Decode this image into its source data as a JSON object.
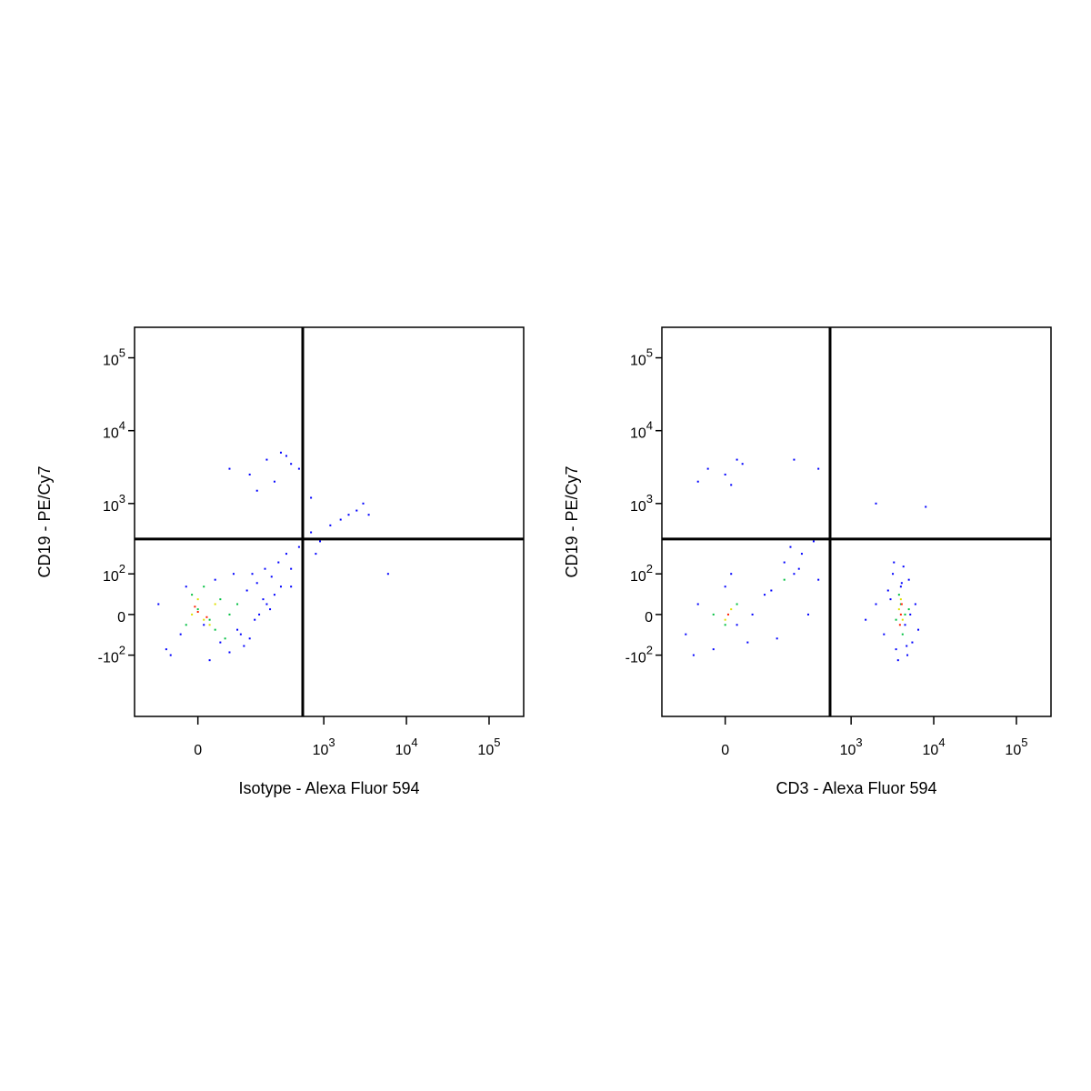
{
  "chart_data": [
    {
      "type": "scatter",
      "scale": "biexponential",
      "x_label": "Isotype - Alexa Fluor 594",
      "y_label": "CD19 - PE/Cy7",
      "xlim": [
        -170,
        262144
      ],
      "ylim": [
        -750,
        262144
      ],
      "xticks": [
        {
          "value": 0,
          "label": "0"
        },
        {
          "value": 1000,
          "label": "10^3"
        },
        {
          "value": 10000,
          "label": "10^4"
        },
        {
          "value": 100000,
          "label": "10^5"
        }
      ],
      "yticks": [
        {
          "value": -100,
          "label": "-10^2"
        },
        {
          "value": 0,
          "label": "0"
        },
        {
          "value": 100,
          "label": "10^2"
        },
        {
          "value": 1000,
          "label": "10^3"
        },
        {
          "value": 10000,
          "label": "10^4"
        },
        {
          "value": 100000,
          "label": "10^5"
        }
      ],
      "gate_x": 555,
      "gate_y": 323,
      "series": [
        {
          "color": "#0000ff",
          "x": [
            -60,
            -30,
            10,
            40,
            80,
            120,
            160,
            200,
            250,
            300,
            -80,
            -20,
            30,
            70,
            110,
            150,
            190,
            230,
            280,
            350,
            400,
            -50,
            20,
            60,
            100,
            140,
            180,
            220,
            90,
            130,
            500,
            700,
            900,
            1200,
            1600,
            2000,
            2500,
            3000,
            3500,
            6000,
            800,
            400,
            60,
            120,
            200,
            300,
            400,
            150,
            250,
            500,
            700,
            350
          ],
          "y": [
            -80,
            -40,
            -20,
            -60,
            -30,
            -50,
            0,
            20,
            40,
            60,
            20,
            60,
            80,
            100,
            50,
            70,
            120,
            90,
            150,
            200,
            120,
            -100,
            -120,
            -90,
            -70,
            -10,
            30,
            10,
            -40,
            100,
            250,
            400,
            300,
            500,
            600,
            700,
            800,
            1000,
            700,
            100,
            200,
            60,
            3000,
            2500,
            4000,
            5000,
            3500,
            1500,
            2000,
            3000,
            1200,
            4500
          ]
        },
        {
          "color": "#00c040",
          "x": [
            -20,
            0,
            20,
            40,
            60,
            -10,
            30,
            80,
            10,
            50
          ],
          "y": [
            -20,
            10,
            -10,
            30,
            0,
            40,
            -30,
            20,
            60,
            -50
          ]
        },
        {
          "color": "#e0e000",
          "x": [
            -10,
            10,
            30,
            0,
            20
          ],
          "y": [
            0,
            -10,
            20,
            30,
            -20
          ]
        },
        {
          "color": "#ff2000",
          "x": [
            0,
            15,
            -5
          ],
          "y": [
            5,
            -5,
            15
          ]
        }
      ]
    },
    {
      "type": "scatter",
      "scale": "biexponential",
      "x_label": "CD3 - Alexa Fluor 594",
      "y_label": "CD19 - PE/Cy7",
      "xlim": [
        -170,
        262144
      ],
      "ylim": [
        -750,
        262144
      ],
      "xticks": [
        {
          "value": 0,
          "label": "0"
        },
        {
          "value": 1000,
          "label": "10^3"
        },
        {
          "value": 10000,
          "label": "10^4"
        },
        {
          "value": 100000,
          "label": "10^5"
        }
      ],
      "yticks": [
        {
          "value": -100,
          "label": "-10^2"
        },
        {
          "value": 0,
          "label": "0"
        },
        {
          "value": 100,
          "label": "10^2"
        },
        {
          "value": 1000,
          "label": "10^3"
        },
        {
          "value": 10000,
          "label": "10^4"
        },
        {
          "value": 100000,
          "label": "10^5"
        }
      ],
      "gate_x": 555,
      "gate_y": 323,
      "series": [
        {
          "color": "#0000ff",
          "x": [
            -80,
            -50,
            -20,
            0,
            20,
            50,
            80,
            -60,
            10,
            40,
            100,
            150,
            200,
            250,
            300,
            400,
            120,
            180,
            230,
            350,
            2500,
            3000,
            3500,
            4000,
            4500,
            5000,
            5500,
            6000,
            3200,
            4800,
            2800,
            3700,
            4300,
            5200,
            6500,
            3300,
            4100,
            4700,
            2000,
            1500,
            -30,
            0,
            20,
            -50,
            30,
            10,
            200,
            400,
            8000,
            2000
          ],
          "y": [
            -40,
            20,
            -80,
            60,
            -20,
            0,
            40,
            -100,
            100,
            -60,
            50,
            150,
            100,
            200,
            0,
            80,
            -50,
            250,
            120,
            300,
            -40,
            30,
            -80,
            60,
            -20,
            80,
            -60,
            20,
            100,
            -100,
            50,
            -120,
            130,
            0,
            -30,
            150,
            70,
            -70,
            20,
            -10,
            3000,
            2500,
            4000,
            2000,
            3500,
            1800,
            4000,
            3000,
            900,
            1000
          ]
        },
        {
          "color": "#00c040",
          "x": [
            -20,
            0,
            20,
            150,
            3500,
            4000,
            4500,
            3800,
            4200,
            5000
          ],
          "y": [
            0,
            -20,
            20,
            80,
            -10,
            20,
            0,
            40,
            -40,
            10
          ]
        },
        {
          "color": "#e0e000",
          "x": [
            3800,
            4200,
            4000,
            0,
            10
          ],
          "y": [
            10,
            -10,
            30,
            -10,
            10
          ]
        },
        {
          "color": "#ff2000",
          "x": [
            4000,
            4100,
            3900,
            5
          ],
          "y": [
            0,
            20,
            -20,
            0
          ]
        }
      ]
    }
  ]
}
